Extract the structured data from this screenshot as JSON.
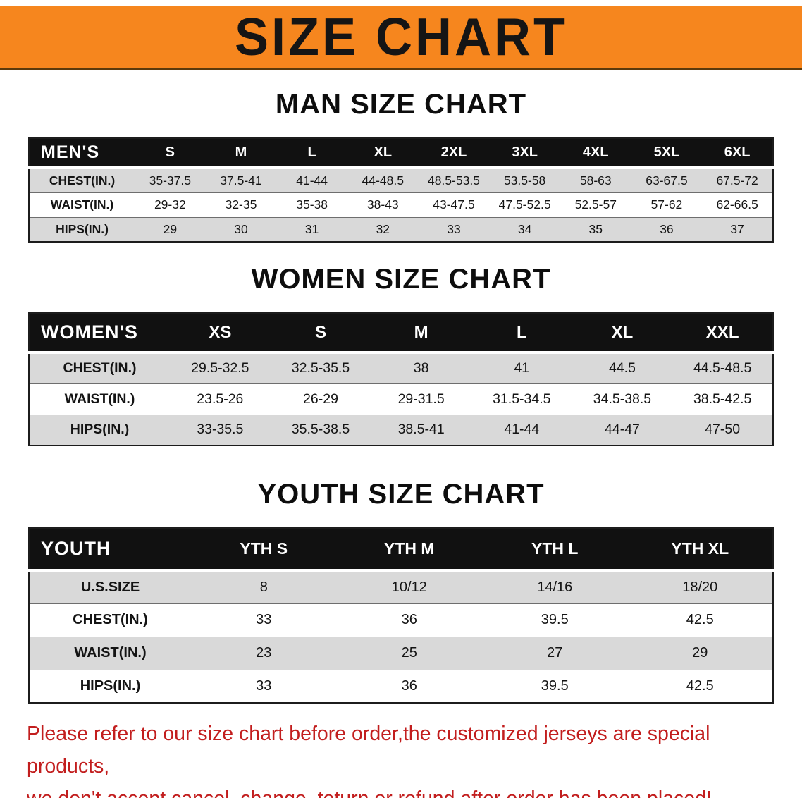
{
  "banner": {
    "title": "SIZE CHART",
    "bg_color": "#F6861E",
    "text_color": "#151515"
  },
  "sections": [
    {
      "heading": "MAN SIZE CHART",
      "table": {
        "corner": "MEN'S",
        "columns": [
          "S",
          "M",
          "L",
          "XL",
          "2XL",
          "3XL",
          "4XL",
          "5XL",
          "6XL"
        ],
        "rows": [
          {
            "label": "CHEST(IN.)",
            "values": [
              "35-37.5",
              "37.5-41",
              "41-44",
              "44-48.5",
              "48.5-53.5",
              "53.5-58",
              "58-63",
              "63-67.5",
              "67.5-72"
            ]
          },
          {
            "label": "WAIST(IN.)",
            "values": [
              "29-32",
              "32-35",
              "35-38",
              "38-43",
              "43-47.5",
              "47.5-52.5",
              "52.5-57",
              "57-62",
              "62-66.5"
            ]
          },
          {
            "label": "HIPS(IN.)",
            "values": [
              "29",
              "30",
              "31",
              "32",
              "33",
              "34",
              "35",
              "36",
              "37"
            ]
          }
        ]
      }
    },
    {
      "heading": "WOMEN SIZE CHART",
      "table": {
        "corner": "WOMEN'S",
        "columns": [
          "XS",
          "S",
          "M",
          "L",
          "XL",
          "XXL"
        ],
        "rows": [
          {
            "label": "CHEST(IN.)",
            "values": [
              "29.5-32.5",
              "32.5-35.5",
              "38",
              "41",
              "44.5",
              "44.5-48.5"
            ]
          },
          {
            "label": "WAIST(IN.)",
            "values": [
              "23.5-26",
              "26-29",
              "29-31.5",
              "31.5-34.5",
              "34.5-38.5",
              "38.5-42.5"
            ]
          },
          {
            "label": "HIPS(IN.)",
            "values": [
              "33-35.5",
              "35.5-38.5",
              "38.5-41",
              "41-44",
              "44-47",
              "47-50"
            ]
          }
        ]
      }
    },
    {
      "heading": "YOUTH SIZE CHART",
      "table": {
        "corner": "YOUTH",
        "columns": [
          "YTH S",
          "YTH M",
          "YTH L",
          "YTH XL"
        ],
        "rows": [
          {
            "label": "U.S.SIZE",
            "values": [
              "8",
              "10/12",
              "14/16",
              "18/20"
            ]
          },
          {
            "label": "CHEST(IN.)",
            "values": [
              "33",
              "36",
              "39.5",
              "42.5"
            ]
          },
          {
            "label": "WAIST(IN.)",
            "values": [
              "23",
              "25",
              "27",
              "29"
            ]
          },
          {
            "label": "HIPS(IN.)",
            "values": [
              "33",
              "36",
              "39.5",
              "42.5"
            ]
          }
        ]
      }
    }
  ],
  "footer": {
    "line1": "Please refer to our size chart before order,the customized jerseys are special products,",
    "line2": "we don't accept cancel, change, teturn or refund after order has been placed!",
    "text_color": "#C21E1E"
  },
  "colors": {
    "table_header_bg": "#111111",
    "stripe_row_bg": "#D9D9D9",
    "table_border": "#1C1C1C"
  }
}
